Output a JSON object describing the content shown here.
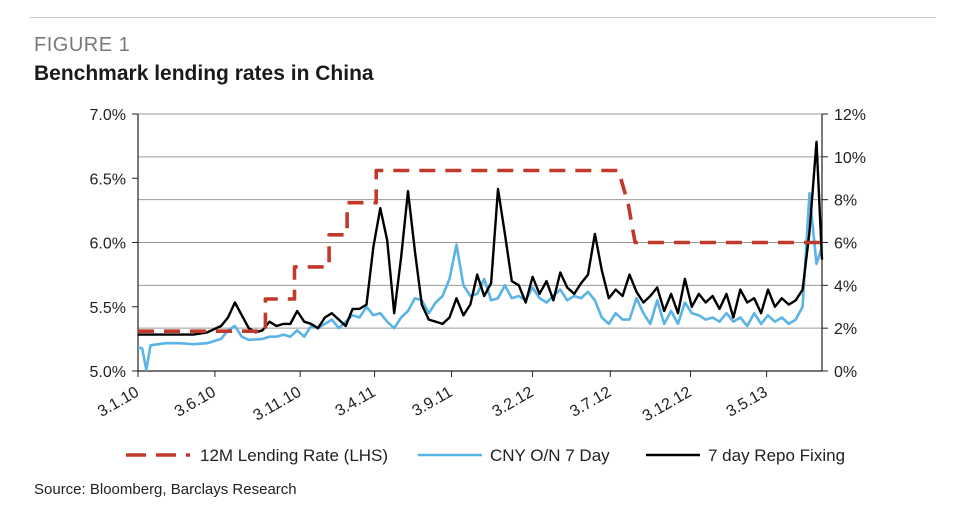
{
  "figure_label": "FIGURE 1",
  "title": "Benchmark lending rates in China",
  "source": "Source: Bloomberg, Barclays Research",
  "colors": {
    "lending_rate": "#c0392b",
    "cny_on": "#5ab4e5",
    "repo": "#000000",
    "grid": "#9a9a9a"
  },
  "chart_data": {
    "type": "line",
    "x_categories": [
      "3.1.10",
      "3.6.10",
      "3.11.10",
      "3.4.11",
      "3.9.11",
      "3.2.12",
      "3.7.12",
      "3.12.12",
      "3.5.13"
    ],
    "y_left": {
      "ticks": [
        "5.0%",
        "5.5%",
        "6.0%",
        "6.5%",
        "7.0%"
      ],
      "range": [
        5.0,
        7.0
      ]
    },
    "y_right": {
      "ticks": [
        "0%",
        "2%",
        "4%",
        "6%",
        "8%",
        "10%",
        "12%"
      ],
      "range": [
        0,
        12
      ]
    },
    "grid": true,
    "legend_placement": "bottom",
    "series": [
      {
        "name": "12M Lending Rate (LHS)",
        "axis": "left",
        "style": "dashed",
        "points": [
          [
            0,
            5.31
          ],
          [
            9.2,
            5.31
          ],
          [
            9.2,
            5.56
          ],
          [
            11.3,
            5.56
          ],
          [
            11.3,
            5.81
          ],
          [
            13.8,
            5.81
          ],
          [
            13.8,
            6.06
          ],
          [
            15.1,
            6.06
          ],
          [
            15.1,
            6.31
          ],
          [
            17.2,
            6.31
          ],
          [
            17.2,
            6.56
          ],
          [
            34.7,
            6.56
          ],
          [
            35.4,
            6.3
          ],
          [
            35.9,
            6.0
          ],
          [
            49.4,
            6.0
          ]
        ]
      },
      {
        "name": "CNY O/N 7 Day",
        "axis": "right",
        "style": "solid",
        "points": [
          [
            0,
            1.1
          ],
          [
            0.3,
            1.05
          ],
          [
            0.6,
            0.05
          ],
          [
            0.9,
            1.2
          ],
          [
            2,
            1.3
          ],
          [
            3,
            1.3
          ],
          [
            4,
            1.25
          ],
          [
            5,
            1.3
          ],
          [
            6,
            1.5
          ],
          [
            6.5,
            1.9
          ],
          [
            7,
            2.1
          ],
          [
            7.5,
            1.6
          ],
          [
            8,
            1.45
          ],
          [
            9,
            1.5
          ],
          [
            9.5,
            1.6
          ],
          [
            10,
            1.6
          ],
          [
            10.5,
            1.7
          ],
          [
            11,
            1.6
          ],
          [
            11.5,
            1.9
          ],
          [
            12,
            1.6
          ],
          [
            12.5,
            2.1
          ],
          [
            13,
            2.0
          ],
          [
            13.5,
            2.2
          ],
          [
            14,
            2.4
          ],
          [
            14.5,
            2.0
          ],
          [
            15,
            2.3
          ],
          [
            15.5,
            2.6
          ],
          [
            16,
            2.5
          ],
          [
            16.5,
            3.0
          ],
          [
            17,
            2.6
          ],
          [
            17.5,
            2.7
          ],
          [
            18,
            2.3
          ],
          [
            18.5,
            2.0
          ],
          [
            19,
            2.5
          ],
          [
            19.5,
            2.8
          ],
          [
            20,
            3.4
          ],
          [
            20.5,
            3.3
          ],
          [
            21,
            2.7
          ],
          [
            21.5,
            3.2
          ],
          [
            22,
            3.5
          ],
          [
            22.5,
            4.3
          ],
          [
            23,
            5.9
          ],
          [
            23.5,
            4.0
          ],
          [
            24,
            3.5
          ],
          [
            24.5,
            3.6
          ],
          [
            25,
            4.3
          ],
          [
            25.5,
            3.3
          ],
          [
            26,
            3.4
          ],
          [
            26.5,
            4.0
          ],
          [
            27,
            3.4
          ],
          [
            27.5,
            3.5
          ],
          [
            28,
            3.3
          ],
          [
            28.5,
            3.9
          ],
          [
            29,
            3.4
          ],
          [
            29.5,
            3.2
          ],
          [
            30,
            3.5
          ],
          [
            30.5,
            3.8
          ],
          [
            31,
            3.3
          ],
          [
            31.5,
            3.5
          ],
          [
            32,
            3.4
          ],
          [
            32.5,
            3.7
          ],
          [
            33,
            3.3
          ],
          [
            33.5,
            2.5
          ],
          [
            34,
            2.2
          ],
          [
            34.5,
            2.7
          ],
          [
            35,
            2.4
          ],
          [
            35.5,
            2.4
          ],
          [
            36,
            3.4
          ],
          [
            36.5,
            2.7
          ],
          [
            37,
            2.2
          ],
          [
            37.5,
            3.3
          ],
          [
            38,
            2.2
          ],
          [
            38.5,
            2.8
          ],
          [
            39,
            2.2
          ],
          [
            39.5,
            3.2
          ],
          [
            40,
            2.7
          ],
          [
            40.5,
            2.6
          ],
          [
            41,
            2.4
          ],
          [
            41.5,
            2.5
          ],
          [
            42,
            2.3
          ],
          [
            42.5,
            2.7
          ],
          [
            43,
            2.3
          ],
          [
            43.5,
            2.5
          ],
          [
            44,
            2.1
          ],
          [
            44.5,
            2.7
          ],
          [
            45,
            2.2
          ],
          [
            45.5,
            2.6
          ],
          [
            46,
            2.3
          ],
          [
            46.5,
            2.5
          ],
          [
            47,
            2.2
          ],
          [
            47.5,
            2.4
          ],
          [
            48,
            3.0
          ],
          [
            48.5,
            8.3
          ],
          [
            49,
            5.0
          ],
          [
            49.4,
            5.8
          ]
        ]
      },
      {
        "name": "7 day Repo Fixing",
        "axis": "right",
        "style": "solid",
        "points": [
          [
            0,
            1.7
          ],
          [
            1,
            1.7
          ],
          [
            2,
            1.7
          ],
          [
            3,
            1.7
          ],
          [
            4,
            1.7
          ],
          [
            5,
            1.8
          ],
          [
            6,
            2.1
          ],
          [
            6.5,
            2.5
          ],
          [
            7,
            3.2
          ],
          [
            7.5,
            2.6
          ],
          [
            8,
            2.0
          ],
          [
            8.5,
            1.8
          ],
          [
            9,
            1.9
          ],
          [
            9.5,
            2.3
          ],
          [
            10,
            2.1
          ],
          [
            10.5,
            2.2
          ],
          [
            11,
            2.2
          ],
          [
            11.5,
            2.8
          ],
          [
            12,
            2.3
          ],
          [
            12.5,
            2.2
          ],
          [
            13,
            2.0
          ],
          [
            13.5,
            2.5
          ],
          [
            14,
            2.7
          ],
          [
            14.5,
            2.4
          ],
          [
            15,
            2.1
          ],
          [
            15.5,
            2.9
          ],
          [
            16,
            2.9
          ],
          [
            16.5,
            3.1
          ],
          [
            17,
            5.8
          ],
          [
            17.5,
            7.6
          ],
          [
            18,
            6.1
          ],
          [
            18.5,
            2.7
          ],
          [
            19,
            5.3
          ],
          [
            19.5,
            8.4
          ],
          [
            20,
            5.6
          ],
          [
            20.5,
            3.1
          ],
          [
            21,
            2.4
          ],
          [
            21.5,
            2.3
          ],
          [
            22,
            2.2
          ],
          [
            22.5,
            2.5
          ],
          [
            23,
            3.4
          ],
          [
            23.5,
            2.6
          ],
          [
            24,
            3.1
          ],
          [
            24.5,
            4.5
          ],
          [
            25,
            3.5
          ],
          [
            25.5,
            4.1
          ],
          [
            26,
            8.5
          ],
          [
            26.5,
            6.4
          ],
          [
            27,
            4.2
          ],
          [
            27.5,
            4.0
          ],
          [
            28,
            3.2
          ],
          [
            28.5,
            4.4
          ],
          [
            29,
            3.6
          ],
          [
            29.5,
            4.2
          ],
          [
            30,
            3.3
          ],
          [
            30.5,
            4.6
          ],
          [
            31,
            3.9
          ],
          [
            31.5,
            3.6
          ],
          [
            32,
            4.1
          ],
          [
            32.5,
            4.5
          ],
          [
            33,
            6.4
          ],
          [
            33.5,
            4.7
          ],
          [
            34,
            3.4
          ],
          [
            34.5,
            3.8
          ],
          [
            35,
            3.5
          ],
          [
            35.5,
            4.5
          ],
          [
            36,
            3.7
          ],
          [
            36.5,
            3.2
          ],
          [
            37,
            3.5
          ],
          [
            37.5,
            3.9
          ],
          [
            38,
            2.8
          ],
          [
            38.5,
            3.6
          ],
          [
            39,
            2.7
          ],
          [
            39.5,
            4.3
          ],
          [
            40,
            3.0
          ],
          [
            40.5,
            3.6
          ],
          [
            41,
            3.2
          ],
          [
            41.5,
            3.5
          ],
          [
            42,
            2.9
          ],
          [
            42.5,
            3.6
          ],
          [
            43,
            2.5
          ],
          [
            43.5,
            3.8
          ],
          [
            44,
            3.2
          ],
          [
            44.5,
            3.4
          ],
          [
            45,
            2.7
          ],
          [
            45.5,
            3.8
          ],
          [
            46,
            3.0
          ],
          [
            46.5,
            3.4
          ],
          [
            47,
            3.1
          ],
          [
            47.5,
            3.3
          ],
          [
            48,
            3.8
          ],
          [
            48.5,
            6.5
          ],
          [
            49,
            10.7
          ],
          [
            49.4,
            5.2
          ]
        ]
      }
    ]
  }
}
